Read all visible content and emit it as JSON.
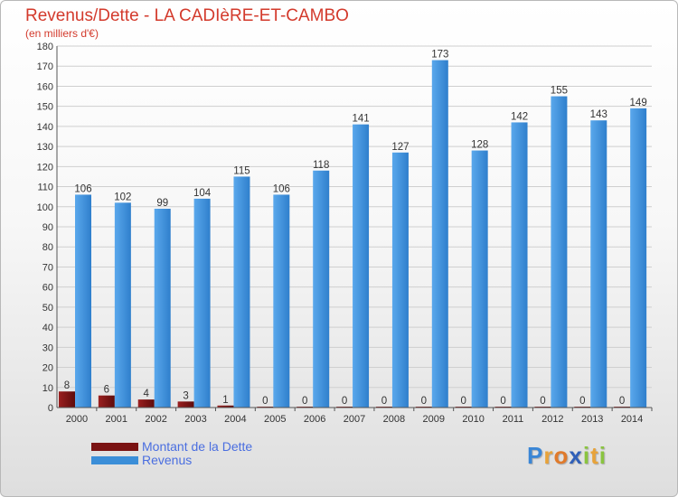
{
  "header": {
    "title": "Revenus/Dette - LA CADIèRE-ET-CAMBO",
    "subtitle": "(en milliers d'€)"
  },
  "chart_data": {
    "type": "bar",
    "categories": [
      "2000",
      "2001",
      "2002",
      "2003",
      "2004",
      "2005",
      "2006",
      "2007",
      "2008",
      "2009",
      "2010",
      "2011",
      "2012",
      "2013",
      "2014"
    ],
    "series": [
      {
        "name": "Montant de la Dette",
        "color": "#7a1212",
        "values": [
          8,
          6,
          4,
          3,
          1,
          0,
          0,
          0,
          0,
          0,
          0,
          0,
          0,
          0,
          0
        ]
      },
      {
        "name": "Revenus",
        "color": "#3b8ed8",
        "values": [
          106,
          102,
          99,
          104,
          115,
          106,
          118,
          141,
          127,
          173,
          128,
          142,
          155,
          143,
          149
        ]
      }
    ],
    "ylim": [
      0,
      180
    ],
    "yticks": [
      0,
      10,
      20,
      30,
      40,
      50,
      60,
      70,
      80,
      90,
      100,
      110,
      120,
      130,
      140,
      150,
      160,
      170,
      180
    ],
    "grid": true,
    "legend_position": "bottom-left"
  },
  "legend": {
    "items": [
      {
        "label": "Montant de la Dette",
        "color": "#7a1212"
      },
      {
        "label": "Revenus",
        "color": "#3b8ed8"
      }
    ]
  },
  "logo": {
    "letters": [
      "P",
      "r",
      "o",
      "x",
      "i",
      "t",
      "i"
    ],
    "colors": [
      "#3a86d6",
      "#e8a33a",
      "#e07a2b",
      "#2f5fb8",
      "#8ac43f",
      "#e8a33a",
      "#8ac43f"
    ]
  }
}
